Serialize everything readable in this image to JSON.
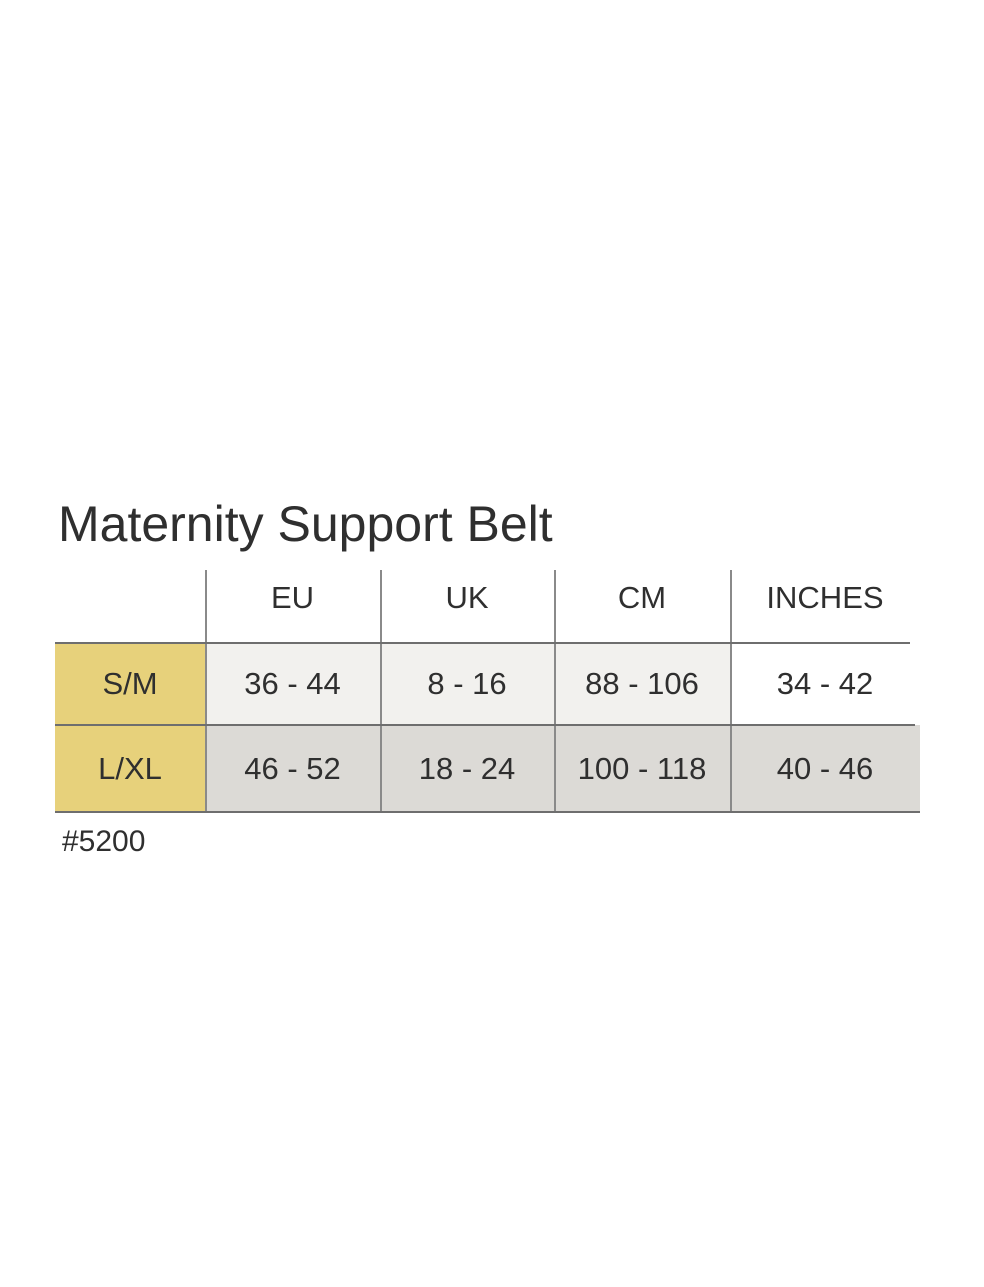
{
  "title": "Maternity Support Belt",
  "table": {
    "header": [
      "EU",
      "UK",
      "CM",
      "INCHES"
    ],
    "rows": [
      [
        "S/M",
        "36 - 44",
        "8 - 16",
        "88 - 106",
        "34 - 42"
      ],
      [
        "L/XL",
        "46 - 52",
        "18 - 24",
        "100 - 118",
        "40 - 46"
      ]
    ]
  },
  "note": "#5200"
}
